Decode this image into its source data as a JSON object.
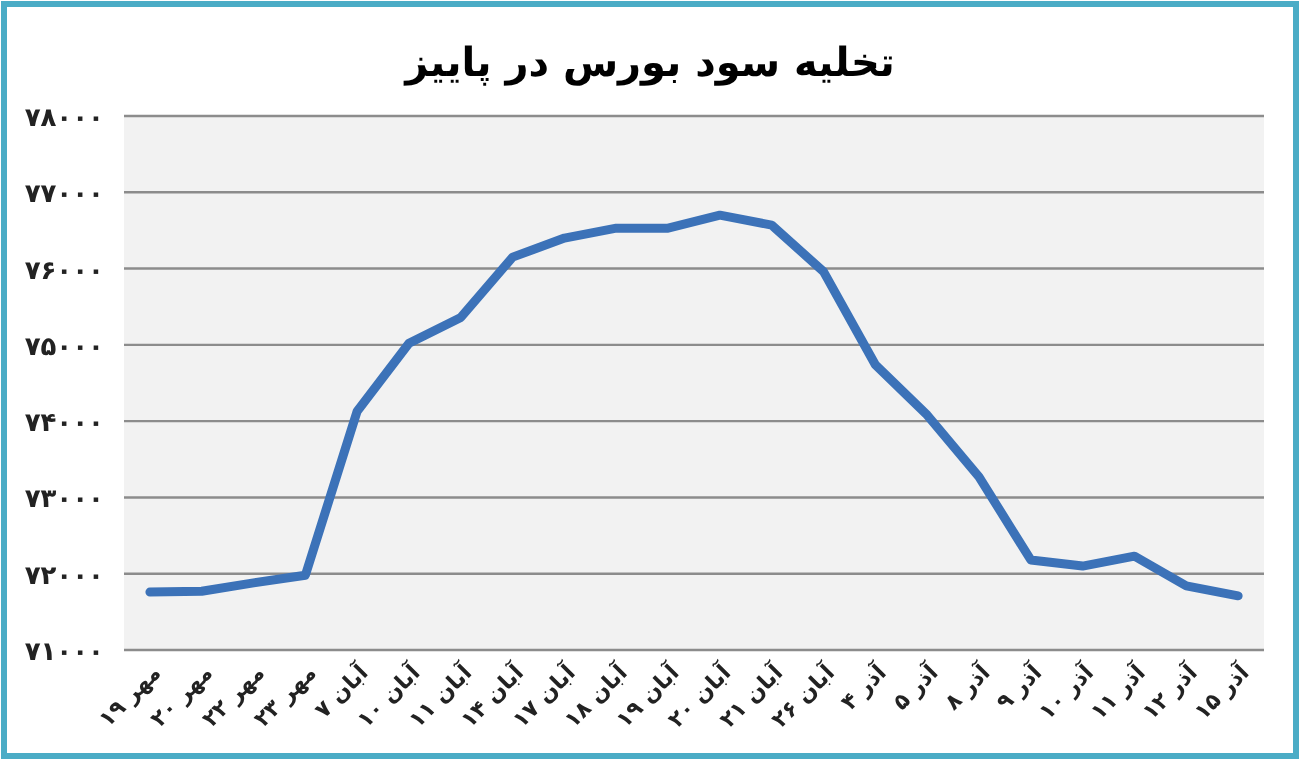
{
  "chart_data": {
    "type": "line",
    "title": "تخلیه سود بورس در پاییز",
    "categories": [
      "۱۹ مهر",
      "۲۰ مهر",
      "۲۲ مهر",
      "۲۳ مهر",
      "۷ آبان",
      "۱۰ آبان",
      "۱۱ آبان",
      "۱۴ آبان",
      "۱۷ آبان",
      "۱۸ آبان",
      "۱۹ آبان",
      "۲۰ آبان",
      "۲۱ آبان",
      "۲۶ آبان",
      "۴ آذر",
      "۵ آذر",
      "۸ آذر",
      "۹ آذر",
      "۱۰ آذر",
      "۱۱ آذر",
      "۱۲ آذر",
      "۱۵ آذر"
    ],
    "values": [
      71760,
      71770,
      71880,
      71980,
      74130,
      75020,
      75360,
      76150,
      76400,
      76530,
      76530,
      76700,
      76570,
      75960,
      74740,
      74080,
      73270,
      72180,
      72100,
      72230,
      71840,
      71710
    ],
    "color": "#3c72b8",
    "ylim": [
      71000,
      78000
    ],
    "yticks": [
      {
        "value": 71000,
        "label": "۷۱۰۰۰"
      },
      {
        "value": 72000,
        "label": "۷۲۰۰۰"
      },
      {
        "value": 73000,
        "label": "۷۳۰۰۰"
      },
      {
        "value": 74000,
        "label": "۷۴۰۰۰"
      },
      {
        "value": 75000,
        "label": "۷۵۰۰۰"
      },
      {
        "value": 76000,
        "label": "۷۶۰۰۰"
      },
      {
        "value": 77000,
        "label": "۷۷۰۰۰"
      },
      {
        "value": 78000,
        "label": "۷۸۰۰۰"
      }
    ],
    "grid": "y"
  }
}
